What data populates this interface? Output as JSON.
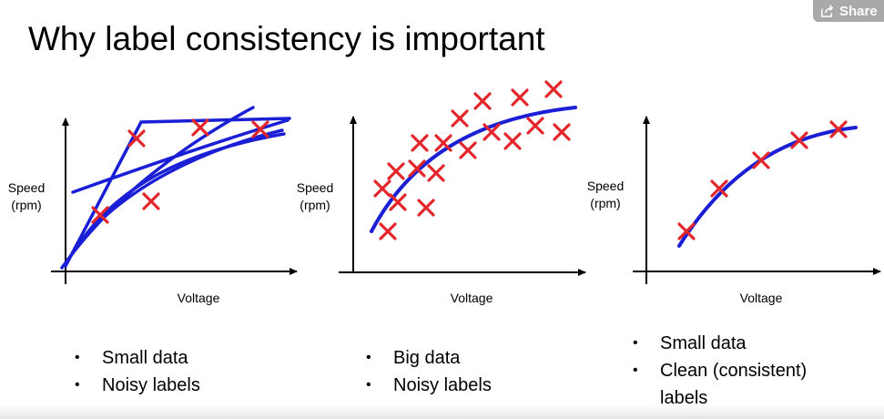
{
  "slide": {
    "title": "Why label consistency is important",
    "share_label": "Share",
    "share_icon": "share-icon",
    "colors": {
      "curve": "#1a1fd6",
      "marker": "#e3262b",
      "axis": "#000000"
    }
  },
  "chart_data": [
    {
      "type": "scatter",
      "xlabel": "Voltage",
      "ylabel": "Speed\n(rpm)",
      "points_count": 5,
      "bullets": [
        "Small data",
        "Noisy labels"
      ]
    },
    {
      "type": "scatter",
      "xlabel": "Voltage",
      "ylabel": "Speed\n(rpm)",
      "bullets": [
        "Big data",
        "Noisy labels"
      ]
    },
    {
      "type": "scatter",
      "xlabel": "Voltage",
      "ylabel": "Speed\n(rpm)",
      "bullets": [
        "Small data",
        "Clean (consistent) labels"
      ]
    }
  ],
  "panels": [
    {
      "ylabel_line1": "Speed",
      "ylabel_line2": "(rpm)",
      "xlabel": "Voltage",
      "bullets": [
        "Small data",
        "Noisy labels"
      ]
    },
    {
      "ylabel_line1": "Speed",
      "ylabel_line2": "(rpm)",
      "xlabel": "Voltage",
      "bullets": [
        "Big data",
        "Noisy labels"
      ]
    },
    {
      "ylabel_line1": "Speed",
      "ylabel_line2": "(rpm)",
      "xlabel": "Voltage",
      "bullets": [
        "Small data",
        "Clean (consistent)",
        "labels"
      ]
    }
  ]
}
